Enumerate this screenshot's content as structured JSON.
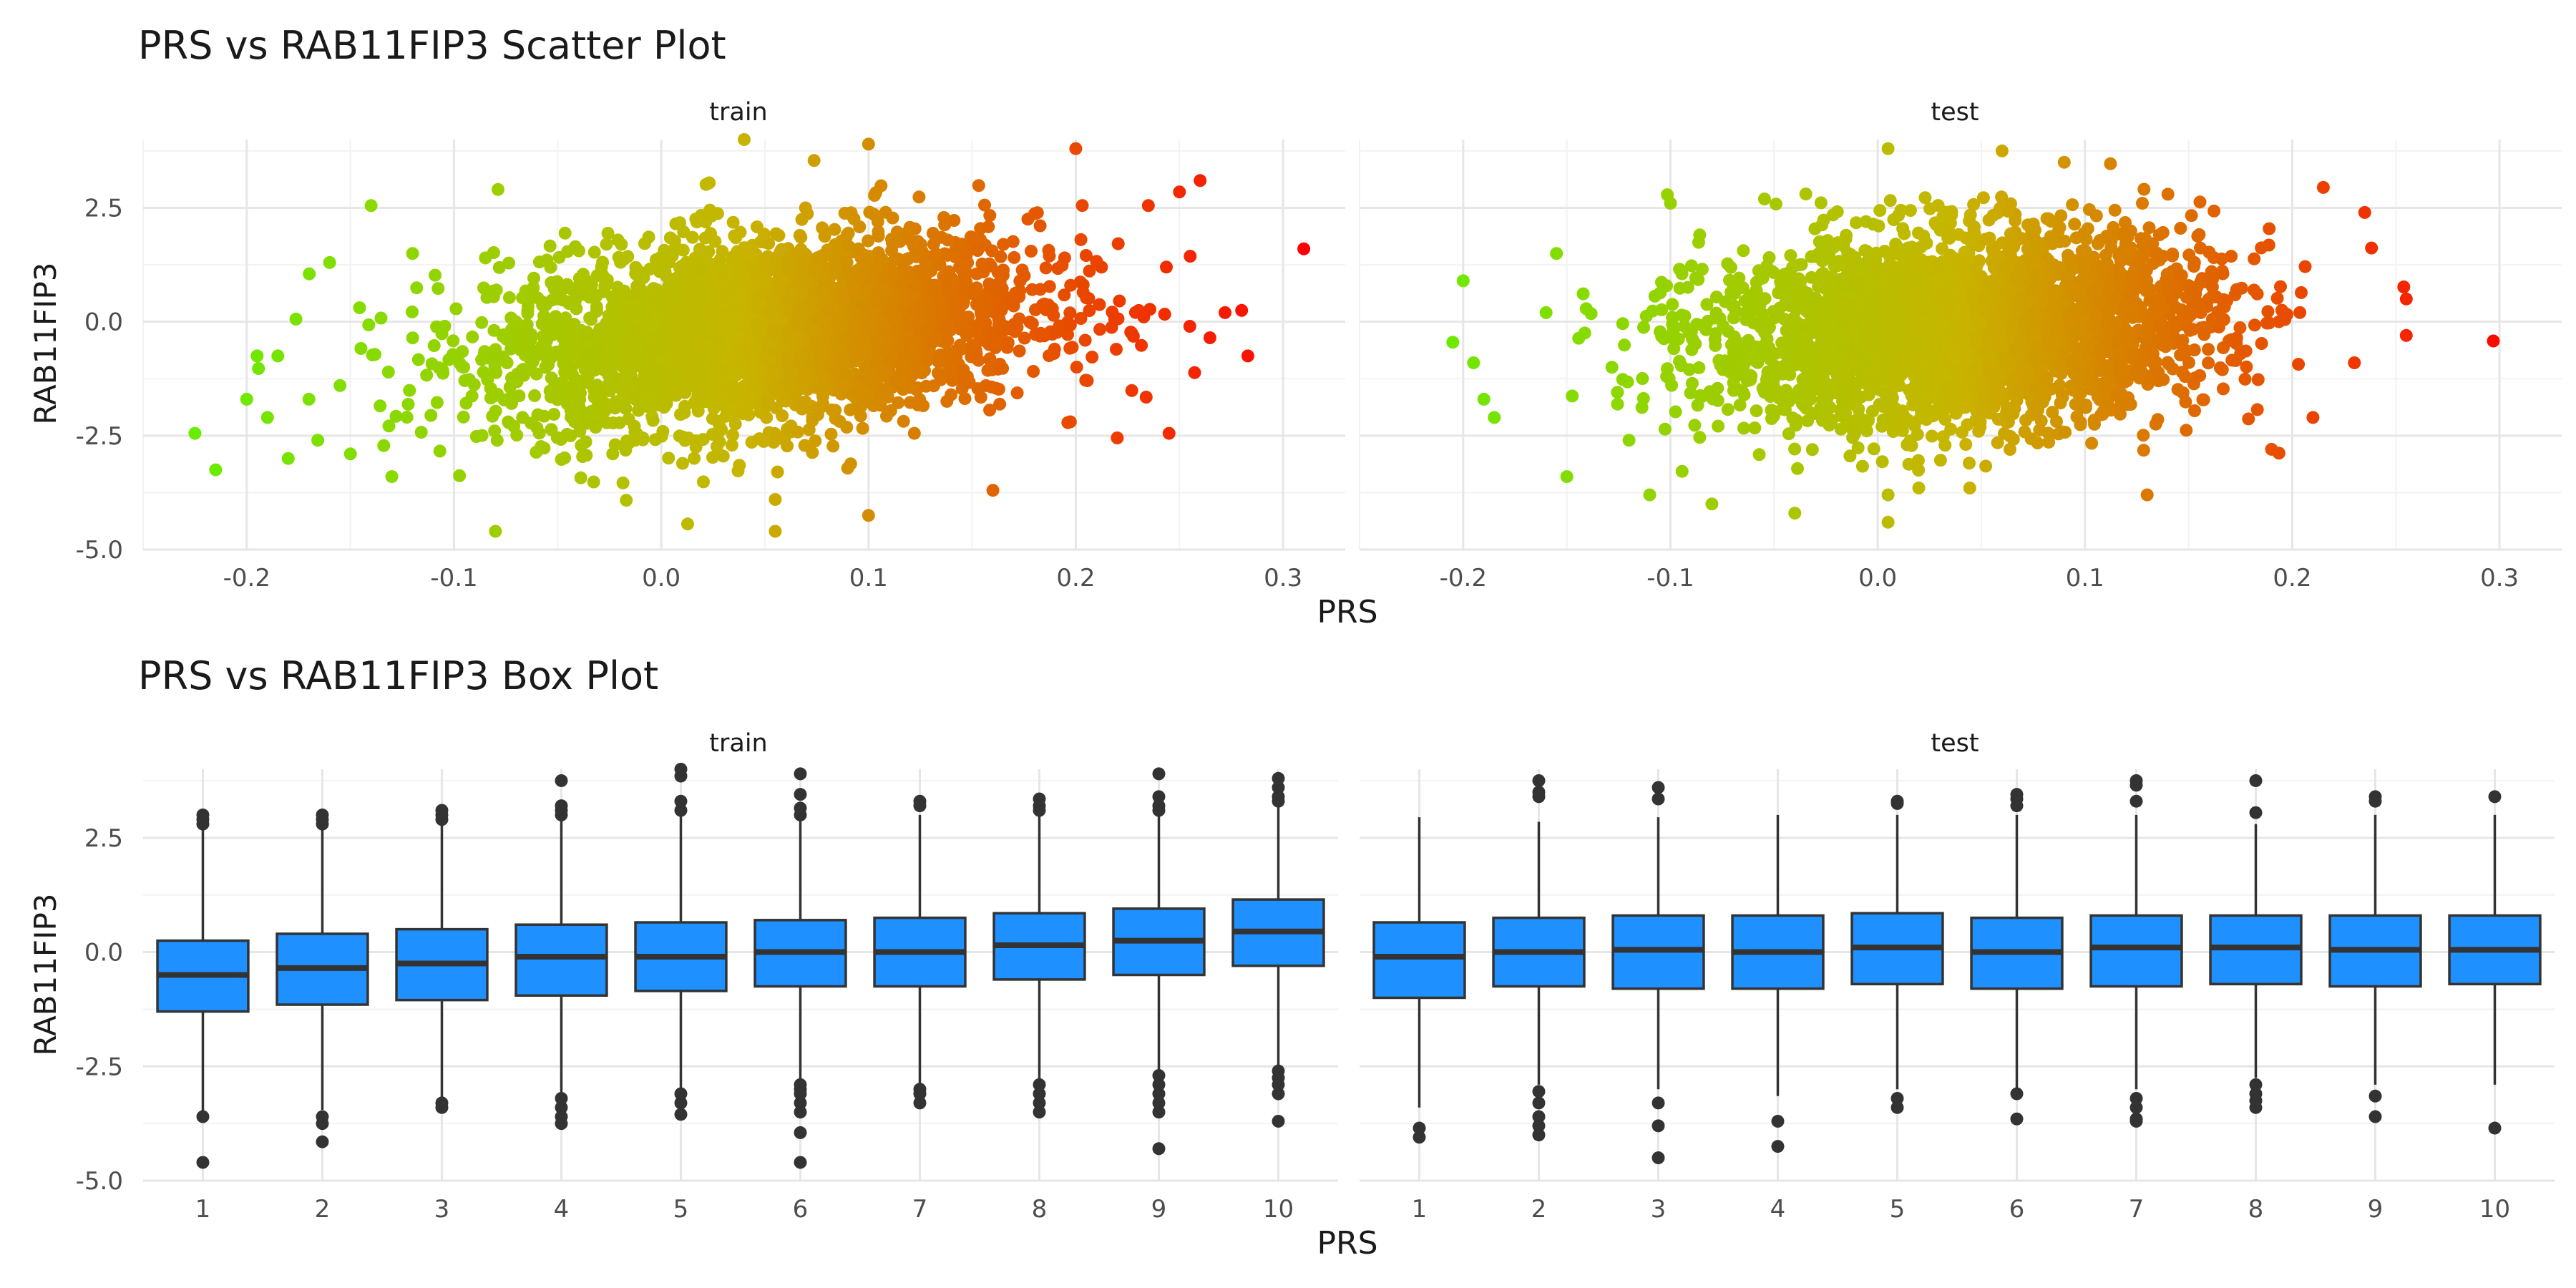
{
  "chart_data": [
    {
      "type": "scatter",
      "title": "PRS vs RAB11FIP3 Scatter Plot",
      "xlabel": "PRS",
      "ylabel": "RAB11FIP3",
      "xlim": [
        -0.25,
        0.33
      ],
      "ylim": [
        -5.0,
        4.0
      ],
      "x_ticks": [
        -0.2,
        -0.1,
        0.0,
        0.1,
        0.2,
        0.3
      ],
      "x_tick_labels": [
        "-0.2",
        "-0.1",
        "0.0",
        "0.1",
        "0.2",
        "0.3"
      ],
      "y_ticks": [
        -5.0,
        -2.5,
        0.0,
        2.5
      ],
      "y_tick_labels": [
        "-5.0",
        "-2.5",
        "0.0",
        "2.5"
      ],
      "grid": true,
      "legend": "none",
      "color_gradient": {
        "low": "#66ee00",
        "mid": "#c8b400",
        "high": "#ff0000",
        "domain": [
          -0.23,
          0.31
        ]
      },
      "facets": [
        {
          "label": "train",
          "cloud": {
            "x_mean": 0.05,
            "x_sd": 0.065,
            "y_mean": -0.2,
            "y_sd": 1.05,
            "corr": 0.25
          },
          "points": [
            {
              "x": 0.31,
              "y": 1.6
            },
            {
              "x": 0.283,
              "y": -0.75
            },
            {
              "x": 0.28,
              "y": 0.25
            },
            {
              "x": 0.272,
              "y": 0.2
            },
            {
              "x": 0.26,
              "y": 3.1
            },
            {
              "x": 0.25,
              "y": 2.85
            },
            {
              "x": 0.245,
              "y": -2.45
            },
            {
              "x": 0.255,
              "y": -0.1
            },
            {
              "x": 0.235,
              "y": 2.55
            },
            {
              "x": 0.22,
              "y": -2.55
            },
            {
              "x": 0.2,
              "y": 3.8
            },
            {
              "x": 0.16,
              "y": -3.7
            },
            {
              "x": 0.1,
              "y": -4.25
            },
            {
              "x": 0.1,
              "y": 3.9
            },
            {
              "x": 0.055,
              "y": -4.6
            },
            {
              "x": 0.04,
              "y": 4.0
            },
            {
              "x": 0.055,
              "y": -3.9
            },
            {
              "x": -0.08,
              "y": -4.6
            },
            {
              "x": -0.225,
              "y": -2.45
            },
            {
              "x": -0.215,
              "y": -3.25
            },
            {
              "x": -0.2,
              "y": -1.7
            },
            {
              "x": -0.19,
              "y": -2.1
            },
            {
              "x": -0.18,
              "y": -3.0
            },
            {
              "x": -0.185,
              "y": -0.75
            },
            {
              "x": -0.195,
              "y": -0.75
            },
            {
              "x": -0.17,
              "y": -1.7
            },
            {
              "x": -0.14,
              "y": 2.55
            },
            {
              "x": -0.155,
              "y": -1.4
            },
            {
              "x": -0.15,
              "y": -2.9
            },
            {
              "x": -0.13,
              "y": -3.4
            },
            {
              "x": -0.12,
              "y": 1.5
            },
            {
              "x": -0.16,
              "y": 1.3
            }
          ]
        },
        {
          "label": "test",
          "cloud": {
            "x_mean": 0.04,
            "x_sd": 0.06,
            "y_mean": -0.15,
            "y_sd": 1.05,
            "corr": 0.15
          },
          "points": [
            {
              "x": 0.255,
              "y": -0.3
            },
            {
              "x": 0.235,
              "y": 2.4
            },
            {
              "x": 0.215,
              "y": 2.95
            },
            {
              "x": 0.23,
              "y": -0.9
            },
            {
              "x": 0.21,
              "y": -2.1
            },
            {
              "x": 0.19,
              "y": -2.8
            },
            {
              "x": 0.14,
              "y": 2.8
            },
            {
              "x": 0.13,
              "y": -3.8
            },
            {
              "x": 0.09,
              "y": 3.5
            },
            {
              "x": 0.06,
              "y": 3.75
            },
            {
              "x": 0.005,
              "y": 3.8
            },
            {
              "x": 0.005,
              "y": -4.4
            },
            {
              "x": 0.005,
              "y": -3.8
            },
            {
              "x": -0.205,
              "y": -0.45
            },
            {
              "x": -0.2,
              "y": 0.9
            },
            {
              "x": -0.19,
              "y": -1.7
            },
            {
              "x": -0.185,
              "y": -2.1
            },
            {
              "x": -0.195,
              "y": -0.9
            },
            {
              "x": -0.15,
              "y": -3.4
            },
            {
              "x": -0.12,
              "y": -2.6
            },
            {
              "x": -0.11,
              "y": -3.8
            },
            {
              "x": -0.1,
              "y": 2.6
            },
            {
              "x": -0.155,
              "y": 1.5
            },
            {
              "x": -0.16,
              "y": 0.2
            },
            {
              "x": -0.08,
              "y": -4.0
            },
            {
              "x": -0.04,
              "y": -4.2
            }
          ]
        }
      ]
    },
    {
      "type": "box",
      "title": "PRS vs RAB11FIP3 Box Plot",
      "xlabel": "PRS",
      "ylabel": "RAB11FIP3",
      "categories": [
        "1",
        "2",
        "3",
        "4",
        "5",
        "6",
        "7",
        "8",
        "9",
        "10"
      ],
      "ylim": [
        -5.0,
        4.0
      ],
      "y_ticks": [
        -5.0,
        -2.5,
        0.0,
        2.5
      ],
      "y_tick_labels": [
        "-5.0",
        "-2.5",
        "0.0",
        "2.5"
      ],
      "grid": true,
      "box_color": "#1e90ff",
      "outline_color": "#333333",
      "facets": [
        {
          "label": "train",
          "boxes": [
            {
              "q1": -1.3,
              "median": -0.5,
              "q3": 0.25,
              "whisker_low": -3.5,
              "whisker_high": 2.7,
              "outliers": [
                2.8,
                2.9,
                3.0,
                -3.6,
                -4.6
              ]
            },
            {
              "q1": -1.15,
              "median": -0.35,
              "q3": 0.4,
              "whisker_low": -3.45,
              "whisker_high": 2.7,
              "outliers": [
                2.8,
                2.9,
                3.0,
                -3.6,
                -3.75,
                -4.15
              ]
            },
            {
              "q1": -1.05,
              "median": -0.25,
              "q3": 0.5,
              "whisker_low": -3.2,
              "whisker_high": 2.8,
              "outliers": [
                2.9,
                3.0,
                3.1,
                -3.3,
                -3.4
              ]
            },
            {
              "q1": -0.95,
              "median": -0.1,
              "q3": 0.6,
              "whisker_low": -3.1,
              "whisker_high": 2.9,
              "outliers": [
                3.0,
                3.1,
                3.2,
                3.75,
                -3.2,
                -3.4,
                -3.6,
                -3.75
              ]
            },
            {
              "q1": -0.85,
              "median": -0.1,
              "q3": 0.65,
              "whisker_low": -3.0,
              "whisker_high": 3.0,
              "outliers": [
                3.1,
                3.3,
                3.85,
                4.0,
                -3.1,
                -3.3,
                -3.55
              ]
            },
            {
              "q1": -0.75,
              "median": 0.0,
              "q3": 0.7,
              "whisker_low": -2.8,
              "whisker_high": 2.9,
              "outliers": [
                3.0,
                3.15,
                3.45,
                3.9,
                -2.9,
                -3.0,
                -3.1,
                -3.3,
                -3.5,
                -3.95,
                -4.6
              ]
            },
            {
              "q1": -0.75,
              "median": 0.0,
              "q3": 0.75,
              "whisker_low": -2.9,
              "whisker_high": 3.0,
              "outliers": [
                3.2,
                3.3,
                -3.0,
                -3.1,
                -3.3
              ]
            },
            {
              "q1": -0.6,
              "median": 0.15,
              "q3": 0.85,
              "whisker_low": -2.8,
              "whisker_high": 3.0,
              "outliers": [
                3.1,
                3.2,
                3.35,
                -2.9,
                -3.1,
                -3.3,
                -3.5
              ]
            },
            {
              "q1": -0.5,
              "median": 0.25,
              "q3": 0.95,
              "whisker_low": -2.6,
              "whisker_high": 3.0,
              "outliers": [
                3.1,
                3.2,
                3.4,
                3.9,
                -2.7,
                -2.9,
                -3.1,
                -3.3,
                -3.5,
                -4.3
              ]
            },
            {
              "q1": -0.3,
              "median": 0.45,
              "q3": 1.15,
              "whisker_low": -2.5,
              "whisker_high": 3.2,
              "outliers": [
                3.3,
                3.4,
                3.6,
                3.8,
                -2.6,
                -2.75,
                -2.9,
                -3.1,
                -3.7
              ]
            }
          ]
        },
        {
          "label": "test",
          "boxes": [
            {
              "q1": -1.0,
              "median": -0.1,
              "q3": 0.65,
              "whisker_low": -3.4,
              "whisker_high": 2.95,
              "outliers": [
                -3.85,
                -4.05
              ]
            },
            {
              "q1": -0.75,
              "median": 0.0,
              "q3": 0.75,
              "whisker_low": -2.9,
              "whisker_high": 2.85,
              "outliers": [
                3.4,
                3.5,
                3.75,
                -3.05,
                -3.3,
                -3.6,
                -3.8,
                -4.0
              ]
            },
            {
              "q1": -0.8,
              "median": 0.05,
              "q3": 0.8,
              "whisker_low": -3.0,
              "whisker_high": 2.95,
              "outliers": [
                3.35,
                3.6,
                -3.3,
                -3.8,
                -4.5
              ]
            },
            {
              "q1": -0.8,
              "median": 0.0,
              "q3": 0.8,
              "whisker_low": -3.15,
              "whisker_high": 3.0,
              "outliers": [
                -3.7,
                -4.25
              ]
            },
            {
              "q1": -0.7,
              "median": 0.1,
              "q3": 0.85,
              "whisker_low": -3.0,
              "whisker_high": 3.0,
              "outliers": [
                3.25,
                3.3,
                -3.2,
                -3.4
              ]
            },
            {
              "q1": -0.8,
              "median": 0.0,
              "q3": 0.75,
              "whisker_low": -3.0,
              "whisker_high": 3.0,
              "outliers": [
                3.2,
                3.35,
                3.45,
                -3.1,
                -3.65
              ]
            },
            {
              "q1": -0.75,
              "median": 0.1,
              "q3": 0.8,
              "whisker_low": -3.0,
              "whisker_high": 3.0,
              "outliers": [
                3.3,
                3.65,
                3.75,
                -3.2,
                -3.4,
                -3.65,
                -3.7
              ]
            },
            {
              "q1": -0.7,
              "median": 0.1,
              "q3": 0.8,
              "whisker_low": -2.75,
              "whisker_high": 2.8,
              "outliers": [
                3.05,
                3.75,
                -2.9,
                -3.1,
                -3.25,
                -3.4
              ]
            },
            {
              "q1": -0.75,
              "median": 0.05,
              "q3": 0.8,
              "whisker_low": -2.9,
              "whisker_high": 3.0,
              "outliers": [
                3.3,
                3.4,
                -3.15,
                -3.6
              ]
            },
            {
              "q1": -0.7,
              "median": 0.05,
              "q3": 0.8,
              "whisker_low": -2.9,
              "whisker_high": 3.0,
              "outliers": [
                3.4,
                -3.85
              ]
            }
          ]
        }
      ]
    }
  ]
}
